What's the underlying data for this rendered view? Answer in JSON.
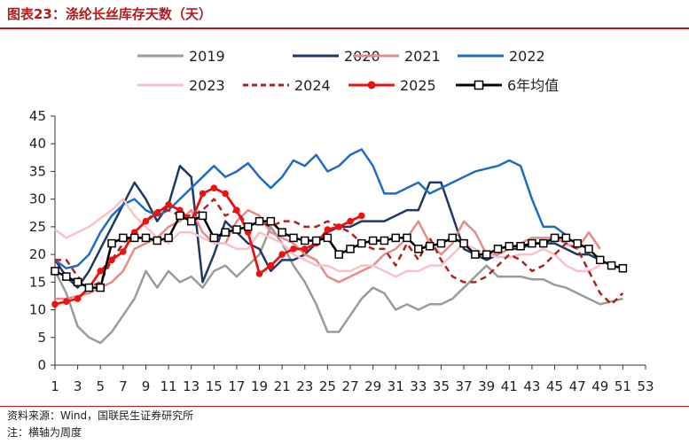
{
  "header": {
    "title": "图表23：涤纶长丝库存天数（天）"
  },
  "footer": {
    "source": "资料来源：Wind，国联民生证券研究所",
    "note": "注：横轴为周度"
  },
  "chart_data": {
    "type": "line",
    "title": "涤纶长丝库存天数（天）",
    "xlabel": "",
    "ylabel": "",
    "xlim": [
      1,
      53
    ],
    "ylim": [
      0,
      45
    ],
    "x_ticks": [
      1,
      3,
      5,
      7,
      9,
      11,
      13,
      15,
      17,
      19,
      21,
      23,
      25,
      27,
      29,
      31,
      33,
      35,
      37,
      39,
      41,
      43,
      45,
      47,
      49,
      51,
      53
    ],
    "y_ticks": [
      0,
      5,
      10,
      15,
      20,
      25,
      30,
      35,
      40,
      45
    ],
    "series": [
      {
        "name": "2019",
        "color": "#9b9b9b",
        "style": "solid",
        "marker": "none",
        "values": [
          17,
          13,
          7,
          5,
          4,
          6,
          9,
          12,
          17,
          14,
          17,
          15,
          16,
          14,
          17,
          18,
          16,
          18,
          20,
          25,
          22,
          18,
          15,
          11,
          6,
          6,
          9,
          12,
          14,
          13,
          10,
          11,
          10,
          11,
          11,
          12,
          14,
          16,
          18,
          16,
          16,
          16,
          15.5,
          15.5,
          14.5,
          14,
          13,
          12,
          11,
          11.5,
          12
        ]
      },
      {
        "name": "2020",
        "color": "#1f3864",
        "style": "solid",
        "marker": "none",
        "values": [
          19,
          16,
          14,
          17,
          21,
          25,
          29,
          33,
          30,
          26,
          29,
          36,
          34,
          15,
          20,
          26,
          24,
          22,
          21,
          17,
          19,
          19,
          20,
          22,
          24,
          25,
          25,
          26,
          26,
          26,
          27,
          28,
          28,
          33,
          33,
          27,
          21,
          20,
          19,
          20,
          21,
          21,
          22,
          22,
          22,
          21,
          20,
          20,
          19
        ]
      },
      {
        "name": "2021",
        "color": "#e8898a",
        "style": "solid",
        "marker": "none",
        "values": [
          12,
          12,
          12.5,
          13,
          14,
          15,
          17,
          21,
          22,
          23,
          25,
          26,
          28,
          24,
          22,
          22,
          26,
          28,
          27,
          24,
          23,
          22,
          20,
          19,
          16,
          15,
          16,
          17,
          18,
          20,
          21,
          23,
          26,
          22,
          20,
          22,
          26,
          24,
          20,
          20,
          21,
          22,
          23,
          23,
          23,
          22,
          21,
          24,
          21
        ]
      },
      {
        "name": "2022",
        "color": "#1f6cc4",
        "style": "solid",
        "marker": "none",
        "values": [
          19,
          17.5,
          18,
          20,
          24,
          27,
          29,
          30,
          28,
          27,
          28,
          30,
          32,
          34,
          36,
          34,
          35,
          36.5,
          34,
          32,
          34,
          37,
          36,
          38,
          35,
          36,
          38,
          39,
          36,
          31,
          31,
          32,
          33,
          31,
          32,
          33,
          34,
          35,
          35.5,
          36,
          37,
          36,
          30,
          25,
          25,
          23.5
        ]
      },
      {
        "name": "2023",
        "color": "#f7c3c8",
        "style": "solid",
        "marker": "none",
        "values": [
          24.5,
          23,
          24,
          25,
          26.5,
          28,
          30,
          27,
          25,
          23,
          22,
          24,
          24,
          23,
          22,
          22,
          21,
          21,
          24,
          23,
          22,
          20,
          19,
          18,
          18,
          17,
          17,
          18,
          18,
          17,
          16,
          17,
          17,
          18,
          18,
          20,
          22,
          21,
          20,
          19.5,
          19.5,
          20,
          20,
          21,
          20,
          18,
          17,
          17,
          18
        ]
      },
      {
        "name": "2024",
        "color": "#b22222",
        "style": "dashed",
        "marker": "none",
        "values": [
          19,
          19,
          16,
          14,
          15,
          19,
          22,
          24,
          26,
          28,
          28,
          27,
          27,
          28,
          30,
          27,
          28,
          25,
          26,
          25,
          26,
          26,
          25,
          25,
          26,
          25,
          24,
          22,
          21,
          21,
          18,
          22,
          19,
          23,
          19,
          16,
          15,
          15,
          16,
          18,
          20,
          19,
          17,
          18,
          20,
          22,
          21,
          17,
          13,
          11,
          13
        ]
      },
      {
        "name": "2025",
        "color": "#ee1111",
        "style": "solid",
        "marker": "circle",
        "values": [
          11,
          11.5,
          12,
          14,
          17,
          19,
          20.5,
          24,
          26,
          27.5,
          29,
          28,
          26,
          31,
          32,
          31,
          28,
          24,
          16.5,
          18,
          20,
          21,
          21,
          22,
          24.5,
          25,
          26,
          27
        ]
      },
      {
        "name": "6年均值",
        "color": "#000000",
        "style": "solid",
        "marker": "square",
        "values": [
          17,
          16,
          15,
          14,
          14,
          22,
          23,
          23,
          23,
          22.5,
          23,
          27,
          26,
          27,
          23,
          24,
          24.5,
          25,
          26,
          26,
          24,
          23,
          22.5,
          22.5,
          23,
          20,
          21,
          22,
          22.5,
          22.5,
          23,
          23,
          21,
          21.5,
          22,
          23,
          22,
          20,
          20,
          21,
          21.5,
          21.5,
          22,
          22,
          23,
          23,
          22,
          21,
          19,
          18,
          17.5
        ]
      }
    ]
  }
}
